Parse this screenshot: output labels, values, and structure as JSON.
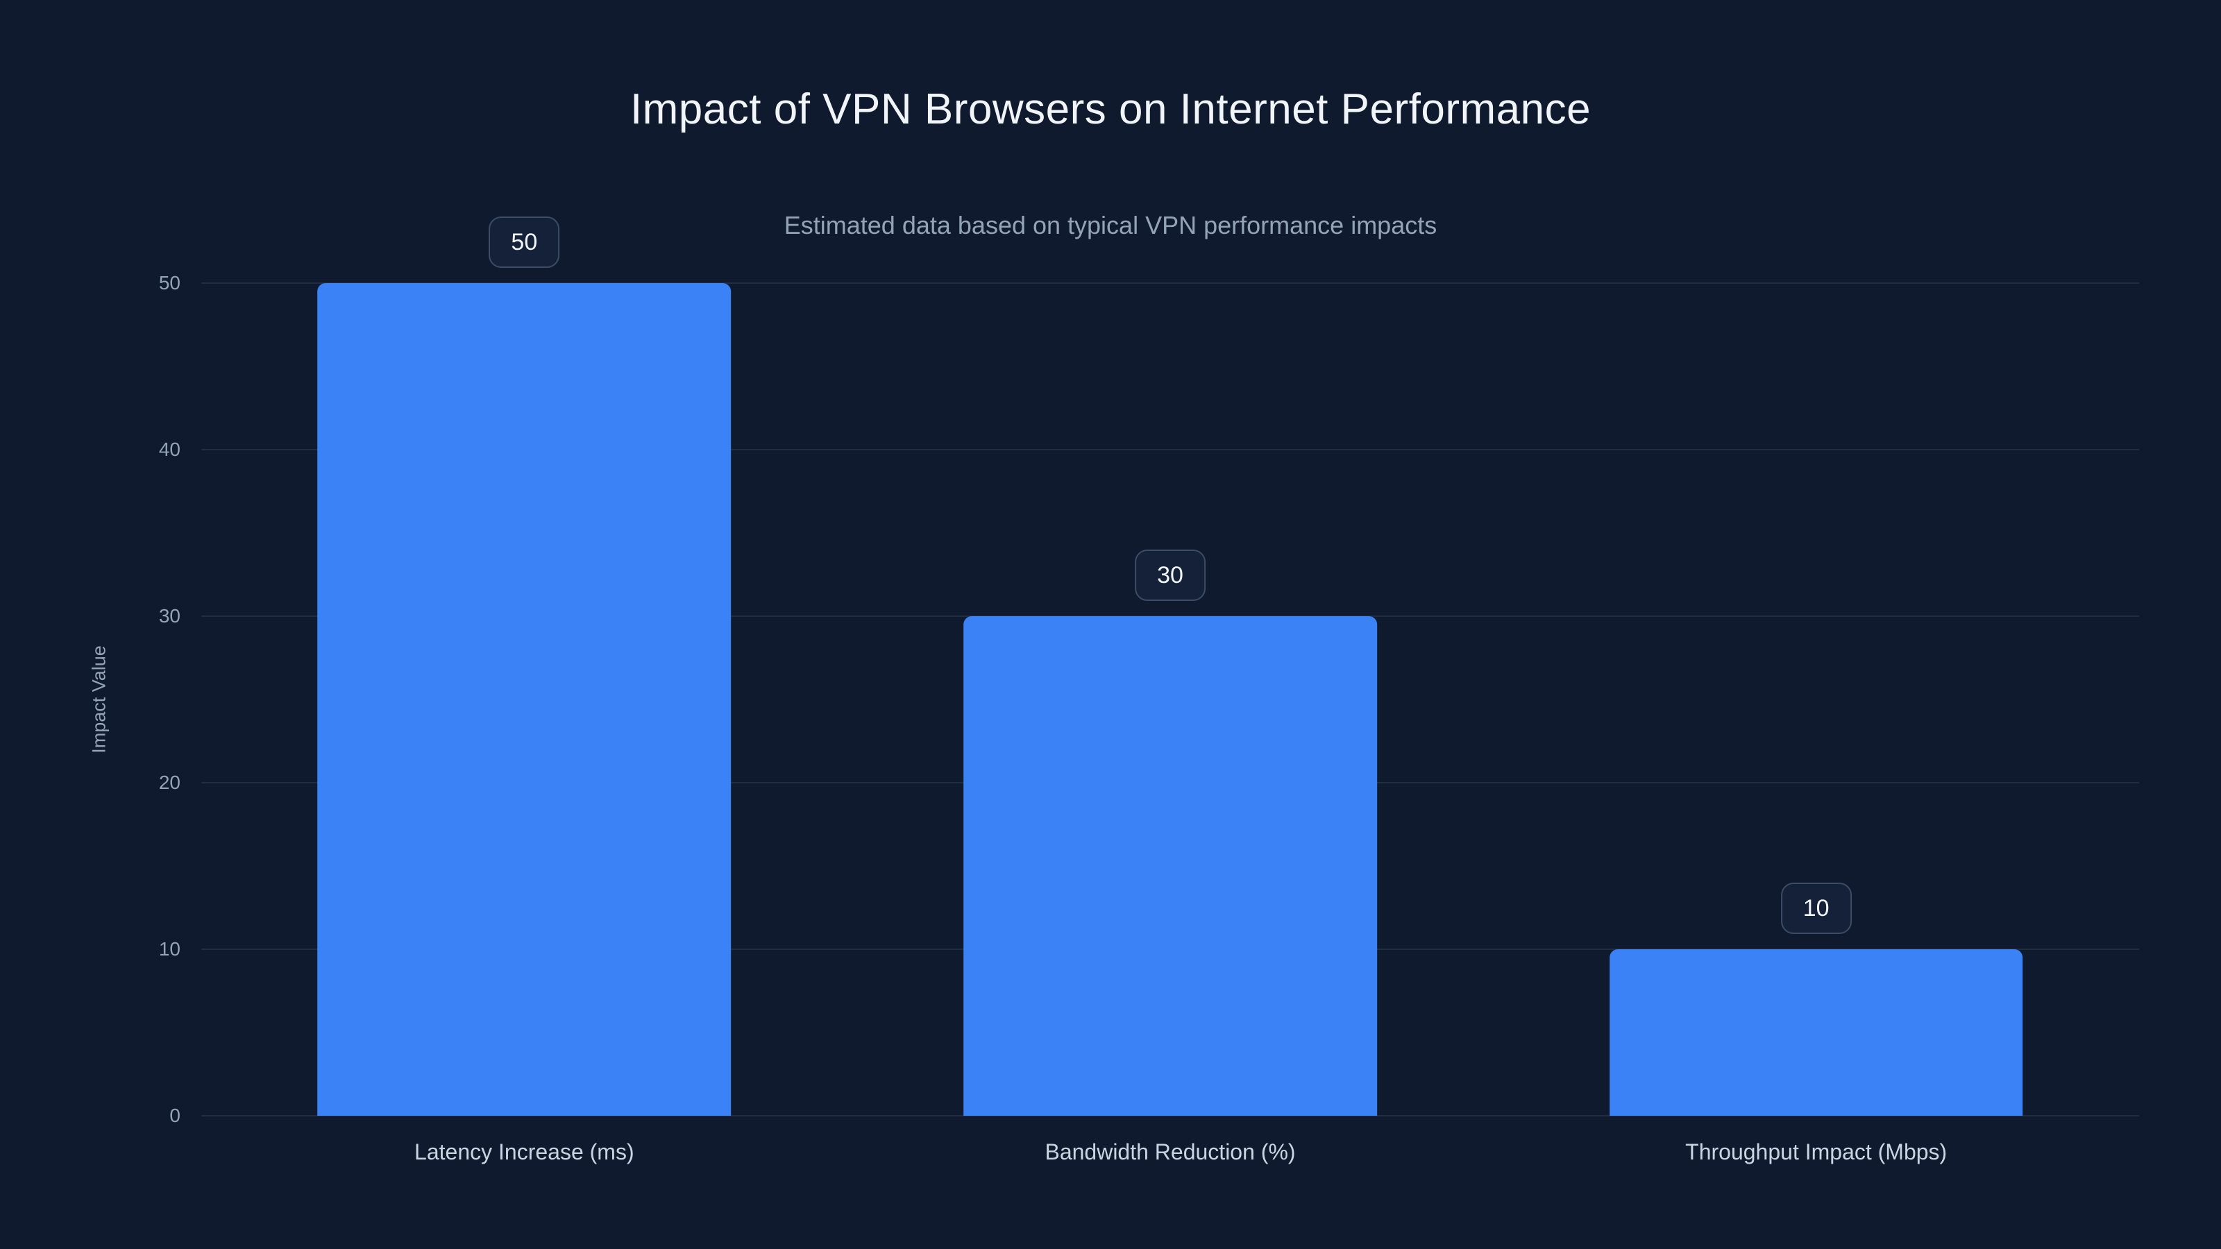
{
  "chart_data": {
    "type": "bar",
    "title": "Impact of VPN Browsers on Internet Performance",
    "subtitle": "Estimated data based on typical VPN performance impacts",
    "categories": [
      "Latency Increase (ms)",
      "Bandwidth Reduction (%)",
      "Throughput Impact (Mbps)"
    ],
    "values": [
      50,
      30,
      10
    ],
    "value_labels": [
      "50",
      "30",
      "10"
    ],
    "xlabel": "",
    "ylabel": "Impact Value",
    "ylim": [
      0,
      50
    ],
    "yticks": [
      0,
      10,
      20,
      30,
      40,
      50
    ],
    "grid": true,
    "legend": false,
    "bar_color": "#3b82f6",
    "background_color": "#0f1a2e",
    "badge_border_color": "#3d4c66",
    "badge_background_color": "#152138",
    "title_color": "#f1f5f9",
    "subtitle_color": "#94a3b8",
    "tick_color": "#94a3b8",
    "category_label_color": "#cbd5e1"
  }
}
